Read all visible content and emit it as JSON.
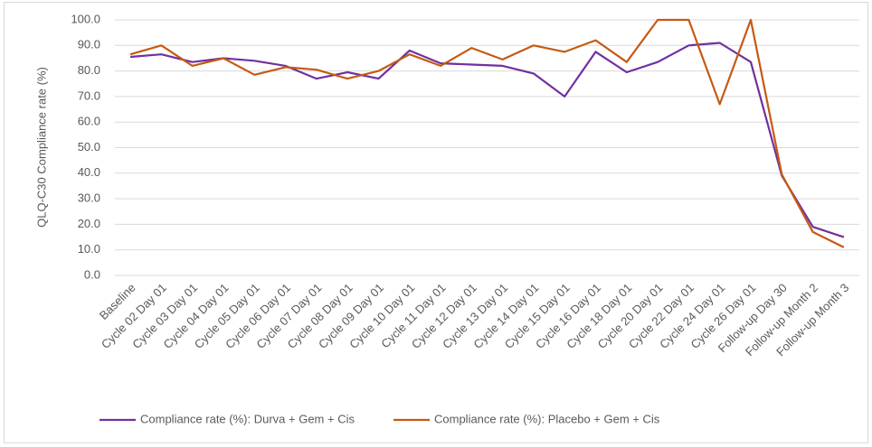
{
  "chart_data": {
    "type": "line",
    "y_label": "QLQ-C30 Compliance rate (%)",
    "categories": [
      "Baseline",
      "Cycle 02 Day 01",
      "Cycle 03 Day 01",
      "Cycle 04 Day 01",
      "Cycle 05 Day 01",
      "Cycle 06 Day 01",
      "Cycle 07 Day 01",
      "Cycle 08 Day 01",
      "Cycle 09 Day 01",
      "Cycle 10 Day 01",
      "Cycle 11 Day 01",
      "Cycle 12 Day 01",
      "Cycle 13 Day 01",
      "Cycle 14 Day 01",
      "Cycle 15 Day 01",
      "Cycle 16 Day 01",
      "Cycle 18 Day 01",
      "Cycle 20 Day 01",
      "Cycle 22 Day 01",
      "Cycle 24 Day 01",
      "Cycle 26 Day 01",
      "Follow-up Day 30",
      "Follow-up Month 2",
      "Follow-up Month 3"
    ],
    "series": [
      {
        "name": "Compliance rate (%): Durva + Gem + Cis",
        "color": "#7030a0",
        "values": [
          85.5,
          86.5,
          83.5,
          85,
          84,
          82,
          77,
          79.5,
          77,
          88,
          83,
          82.5,
          82,
          79,
          70,
          87.5,
          79.5,
          83.5,
          90,
          91,
          83.5,
          39,
          19,
          15
        ]
      },
      {
        "name": "Compliance rate (%): Placebo + Gem + Cis",
        "color": "#c55a11",
        "values": [
          86.5,
          90,
          82,
          85,
          78.5,
          81.5,
          80.5,
          77,
          80,
          86.5,
          82,
          89,
          84.5,
          90,
          87.5,
          92,
          83.5,
          100,
          100,
          67,
          100,
          39.5,
          17,
          11
        ]
      }
    ],
    "ylim": [
      0,
      100
    ],
    "yticks": [
      {
        "value": 0,
        "label": "0.0"
      },
      {
        "value": 10,
        "label": "10.0"
      },
      {
        "value": 20,
        "label": "20.0"
      },
      {
        "value": 30,
        "label": "30.0"
      },
      {
        "value": 40,
        "label": "40.0"
      },
      {
        "value": 50,
        "label": "50.0"
      },
      {
        "value": 60,
        "label": "60.0"
      },
      {
        "value": 70,
        "label": "70.0"
      },
      {
        "value": 80,
        "label": "80.0"
      },
      {
        "value": 90,
        "label": "90.0"
      },
      {
        "value": 100,
        "label": "100.0"
      }
    ],
    "grid": true,
    "legend": "bottom"
  }
}
